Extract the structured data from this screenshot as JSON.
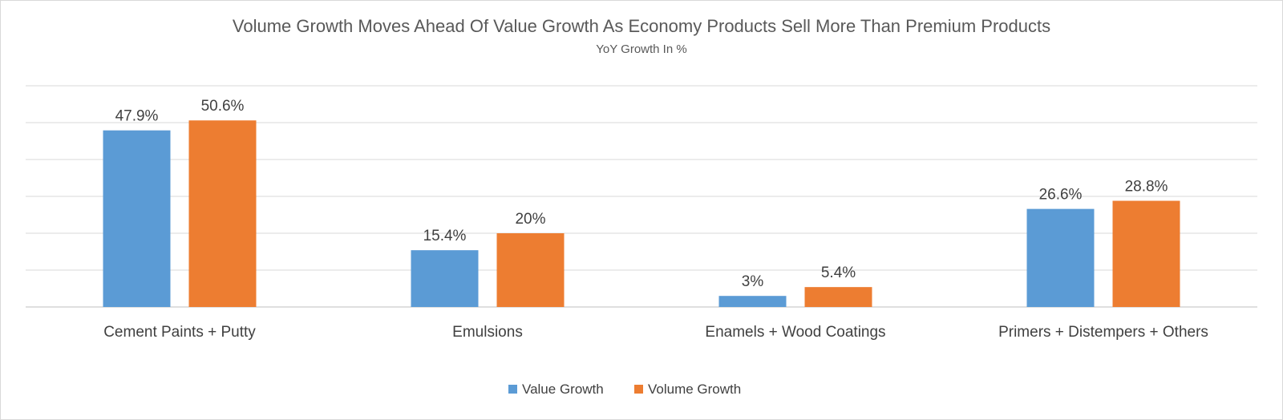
{
  "chart_data": {
    "type": "bar",
    "title": "Volume Growth Moves Ahead Of Value Growth As Economy Products Sell More Than Premium Products",
    "subtitle": "YoY Growth In %",
    "categories": [
      "Cement Paints + Putty",
      "Emulsions",
      "Enamels + Wood Coatings",
      "Primers + Distempers + Others"
    ],
    "series": [
      {
        "name": "Value Growth",
        "values": [
          47.9,
          15.4,
          3,
          26.6
        ],
        "labels": [
          "47.9%",
          "15.4%",
          "3%",
          "26.6%"
        ],
        "color": "#5b9bd5"
      },
      {
        "name": "Volume Growth",
        "values": [
          50.6,
          20,
          5.4,
          28.8
        ],
        "labels": [
          "50.6%",
          "20%",
          "5.4%",
          "28.8%"
        ],
        "color": "#ed7d31"
      }
    ],
    "ylim": [
      0,
      60
    ],
    "grid": true,
    "legend": "bottom"
  }
}
